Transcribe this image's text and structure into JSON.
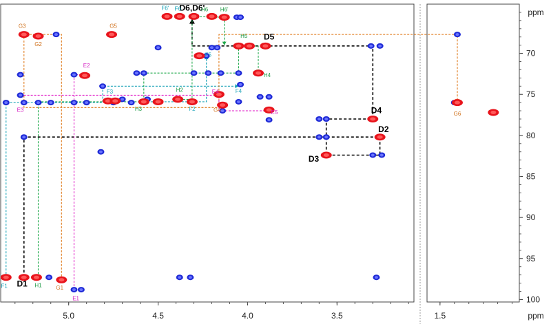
{
  "chart_data": {
    "type": "scatter",
    "subtype": "2D NMR spectrum (HSQC-TOCSY overlay)",
    "xlabel": "ppm",
    "ylabel": "ppm",
    "x_ticks_main": [
      "5.0",
      "4.5",
      "4.0",
      "3.5"
    ],
    "x_ticks_inset": [
      "1.5"
    ],
    "y_ticks": [
      "70",
      "75",
      "80",
      "85",
      "90",
      "95",
      "100"
    ],
    "xlim_main": [
      5.38,
      3.07
    ],
    "xlim_inset": [
      1.59,
      0.95
    ],
    "ylim": [
      100.3,
      64.0
    ],
    "grid": false,
    "colors": {
      "crosspeak_red": "#e8141c",
      "crosspeak_blue": "#1f2bd6",
      "path_black": "#000000",
      "path_F": "#1aa3b8",
      "path_G": "#e07b1c",
      "path_H": "#1ea84a",
      "path_E": "#e01ec8",
      "label_F": "#1aa3b8",
      "label_G": "#d0701a",
      "label_H": "#1e9a46",
      "label_E": "#d41cc0"
    },
    "red_peaks": [
      {
        "x": 5.35,
        "y": 97.3
      },
      {
        "x": 5.25,
        "y": 97.3
      },
      {
        "x": 5.18,
        "y": 97.3
      },
      {
        "x": 5.04,
        "y": 97.6
      },
      {
        "x": 5.25,
        "y": 67.7
      },
      {
        "x": 5.17,
        "y": 67.9
      },
      {
        "x": 4.76,
        "y": 67.7
      },
      {
        "x": 4.91,
        "y": 72.7
      },
      {
        "x": 4.78,
        "y": 75.8
      },
      {
        "x": 4.74,
        "y": 75.8
      },
      {
        "x": 4.58,
        "y": 75.9
      },
      {
        "x": 4.5,
        "y": 75.9
      },
      {
        "x": 4.39,
        "y": 75.6
      },
      {
        "x": 4.31,
        "y": 75.9
      },
      {
        "x": 4.45,
        "y": 65.5
      },
      {
        "x": 4.38,
        "y": 65.5
      },
      {
        "x": 4.3,
        "y": 65.5
      },
      {
        "x": 4.2,
        "y": 65.5
      },
      {
        "x": 4.13,
        "y": 65.6
      },
      {
        "x": 4.27,
        "y": 70.3
      },
      {
        "x": 4.16,
        "y": 75.0
      },
      {
        "x": 4.14,
        "y": 76.3
      },
      {
        "x": 4.05,
        "y": 69.1
      },
      {
        "x": 3.99,
        "y": 69.1
      },
      {
        "x": 3.9,
        "y": 69.1
      },
      {
        "x": 3.94,
        "y": 72.4
      },
      {
        "x": 3.88,
        "y": 76.9
      },
      {
        "x": 3.3,
        "y": 78.0
      },
      {
        "x": 3.26,
        "y": 80.2
      },
      {
        "x": 3.56,
        "y": 82.4
      },
      {
        "x": 1.38,
        "y": 76.0
      },
      {
        "x": 1.13,
        "y": 77.2
      }
    ],
    "blue_peaks": [
      {
        "x": 5.35,
        "y": 76.0
      },
      {
        "x": 5.27,
        "y": 72.6
      },
      {
        "x": 5.27,
        "y": 75.1
      },
      {
        "x": 5.25,
        "y": 76.0
      },
      {
        "x": 5.17,
        "y": 76.0
      },
      {
        "x": 5.1,
        "y": 76.0
      },
      {
        "x": 5.25,
        "y": 80.2
      },
      {
        "x": 5.07,
        "y": 67.7
      },
      {
        "x": 4.97,
        "y": 72.6
      },
      {
        "x": 4.97,
        "y": 76.0
      },
      {
        "x": 4.9,
        "y": 76.0
      },
      {
        "x": 4.97,
        "y": 98.8
      },
      {
        "x": 4.93,
        "y": 98.8
      },
      {
        "x": 5.11,
        "y": 97.3
      },
      {
        "x": 4.81,
        "y": 74.0
      },
      {
        "x": 4.7,
        "y": 75.6
      },
      {
        "x": 4.65,
        "y": 76.0
      },
      {
        "x": 4.75,
        "y": 76.0
      },
      {
        "x": 4.62,
        "y": 72.4
      },
      {
        "x": 4.58,
        "y": 72.4
      },
      {
        "x": 4.5,
        "y": 69.3
      },
      {
        "x": 4.56,
        "y": 75.6
      },
      {
        "x": 4.3,
        "y": 72.4
      },
      {
        "x": 4.22,
        "y": 72.4
      },
      {
        "x": 4.38,
        "y": 97.3
      },
      {
        "x": 4.32,
        "y": 97.3
      },
      {
        "x": 4.2,
        "y": 69.3
      },
      {
        "x": 4.17,
        "y": 69.3
      },
      {
        "x": 4.23,
        "y": 70.3
      },
      {
        "x": 4.06,
        "y": 65.6
      },
      {
        "x": 4.05,
        "y": 72.4
      },
      {
        "x": 4.04,
        "y": 73.8
      },
      {
        "x": 4.05,
        "y": 75.9
      },
      {
        "x": 3.93,
        "y": 75.3
      },
      {
        "x": 3.88,
        "y": 75.3
      },
      {
        "x": 4.14,
        "y": 77.0
      },
      {
        "x": 4.15,
        "y": 72.4
      },
      {
        "x": 3.88,
        "y": 78.1
      },
      {
        "x": 3.6,
        "y": 78.0
      },
      {
        "x": 3.56,
        "y": 78.0
      },
      {
        "x": 3.6,
        "y": 80.2
      },
      {
        "x": 3.56,
        "y": 80.2
      },
      {
        "x": 3.31,
        "y": 69.1
      },
      {
        "x": 3.26,
        "y": 69.1
      },
      {
        "x": 3.3,
        "y": 82.4
      },
      {
        "x": 3.25,
        "y": 82.4
      },
      {
        "x": 3.28,
        "y": 97.3
      },
      {
        "x": 1.38,
        "y": 67.7
      },
      {
        "x": 1.4,
        "y": 76.0
      },
      {
        "x": 4.82,
        "y": 82.0
      },
      {
        "x": 4.04,
        "y": 65.6
      }
    ],
    "paths": [
      {
        "series": "D",
        "color_key": "path_black",
        "points": [
          [
            5.25,
            97.3
          ],
          [
            5.25,
            80.2
          ],
          [
            3.26,
            80.2
          ],
          [
            3.26,
            82.4
          ],
          [
            3.56,
            82.4
          ],
          [
            3.56,
            78.0
          ],
          [
            3.3,
            78.0
          ],
          [
            3.3,
            69.1
          ],
          [
            4.05,
            69.1
          ],
          [
            4.31,
            69.1
          ],
          [
            4.31,
            65.8
          ]
        ]
      },
      {
        "series": "F",
        "color_key": "path_F",
        "points": [
          [
            5.35,
            97.3
          ],
          [
            5.35,
            76.0
          ],
          [
            4.81,
            76.0
          ],
          [
            4.81,
            74.0
          ],
          [
            4.05,
            74.0
          ]
        ]
      },
      {
        "series": "F",
        "color_key": "path_F",
        "points": [
          [
            4.58,
            75.9
          ],
          [
            4.23,
            75.9
          ],
          [
            4.23,
            70.3
          ]
        ]
      },
      {
        "series": "G",
        "color_key": "path_G",
        "points": [
          [
            5.04,
            97.6
          ],
          [
            5.04,
            67.7
          ],
          [
            5.25,
            67.7
          ],
          [
            5.25,
            76.6
          ],
          [
            4.16,
            76.6
          ],
          [
            4.16,
            67.7
          ],
          [
            1.38,
            67.7
          ],
          [
            1.38,
            76.0
          ]
        ]
      },
      {
        "series": "H",
        "color_key": "path_H",
        "points": [
          [
            5.17,
            97.3
          ],
          [
            5.17,
            75.9
          ],
          [
            4.58,
            75.9
          ],
          [
            4.58,
            72.4
          ],
          [
            4.05,
            72.4
          ],
          [
            4.05,
            69.1
          ],
          [
            3.94,
            69.1
          ],
          [
            3.94,
            72.4
          ]
        ]
      },
      {
        "series": "H",
        "color_key": "path_H",
        "points": [
          [
            4.38,
            75.6
          ],
          [
            4.31,
            75.6
          ],
          [
            4.31,
            65.5
          ],
          [
            4.13,
            65.6
          ],
          [
            4.13,
            69.0
          ]
        ]
      },
      {
        "series": "E",
        "color_key": "path_E",
        "points": [
          [
            4.97,
            98.8
          ],
          [
            4.97,
            72.6
          ],
          [
            4.91,
            72.6
          ]
        ]
      },
      {
        "series": "E",
        "color_key": "path_E",
        "points": [
          [
            5.27,
            75.1
          ],
          [
            4.16,
            75.1
          ],
          [
            4.16,
            77.0
          ],
          [
            3.88,
            77.0
          ]
        ]
      }
    ],
    "annotations": [
      {
        "text": "D1",
        "x": 5.26,
        "y": 98.4,
        "style": "d"
      },
      {
        "text": "D2",
        "x": 3.24,
        "y": 79.6,
        "style": "d"
      },
      {
        "text": "D3",
        "x": 3.63,
        "y": 83.2,
        "style": "d"
      },
      {
        "text": "D4",
        "x": 3.28,
        "y": 77.3,
        "style": "d"
      },
      {
        "text": "D5",
        "x": 3.88,
        "y": 68.3,
        "style": "d"
      },
      {
        "text": "D6,D6'",
        "x": 4.31,
        "y": 64.8,
        "style": "d"
      },
      {
        "text": "F1",
        "x": 5.36,
        "y": 98.6,
        "style": "F"
      },
      {
        "text": "F2",
        "x": 4.31,
        "y": 77.0,
        "style": "F"
      },
      {
        "text": "F3",
        "x": 4.77,
        "y": 74.9,
        "style": "F"
      },
      {
        "text": "F4",
        "x": 4.05,
        "y": 74.8,
        "style": "F"
      },
      {
        "text": "F5",
        "x": 4.22,
        "y": 70.4,
        "style": "F"
      },
      {
        "text": "F6'",
        "x": 4.46,
        "y": 64.7,
        "style": "F"
      },
      {
        "text": "F6",
        "x": 4.39,
        "y": 64.8,
        "style": "F"
      },
      {
        "text": "G1",
        "x": 5.05,
        "y": 98.8,
        "style": "G"
      },
      {
        "text": "G2",
        "x": 5.17,
        "y": 69.1,
        "style": "G"
      },
      {
        "text": "G3",
        "x": 5.26,
        "y": 66.9,
        "style": "G"
      },
      {
        "text": "G4",
        "x": 4.17,
        "y": 77.1,
        "style": "G"
      },
      {
        "text": "G5",
        "x": 4.75,
        "y": 66.9,
        "style": "G"
      },
      {
        "text": "G6",
        "x": 1.38,
        "y": 77.6,
        "style": "G"
      },
      {
        "text": "H1",
        "x": 5.17,
        "y": 98.5,
        "style": "H"
      },
      {
        "text": "H2",
        "x": 4.38,
        "y": 74.7,
        "style": "H"
      },
      {
        "text": "H3",
        "x": 4.61,
        "y": 77.0,
        "style": "H"
      },
      {
        "text": "H4",
        "x": 3.89,
        "y": 72.9,
        "style": "H"
      },
      {
        "text": "H5",
        "x": 4.02,
        "y": 68.1,
        "style": "H"
      },
      {
        "text": "H6",
        "x": 4.24,
        "y": 64.9,
        "style": "H"
      },
      {
        "text": "H6'",
        "x": 4.13,
        "y": 64.9,
        "style": "H"
      },
      {
        "text": "E1",
        "x": 4.96,
        "y": 100.1,
        "style": "E"
      },
      {
        "text": "E2",
        "x": 4.9,
        "y": 71.7,
        "style": "E"
      },
      {
        "text": "E3",
        "x": 5.27,
        "y": 77.1,
        "style": "E"
      },
      {
        "text": "E4",
        "x": 4.18,
        "y": 74.9,
        "style": "E"
      },
      {
        "text": "E5",
        "x": 3.85,
        "y": 77.4,
        "style": "E"
      }
    ]
  }
}
